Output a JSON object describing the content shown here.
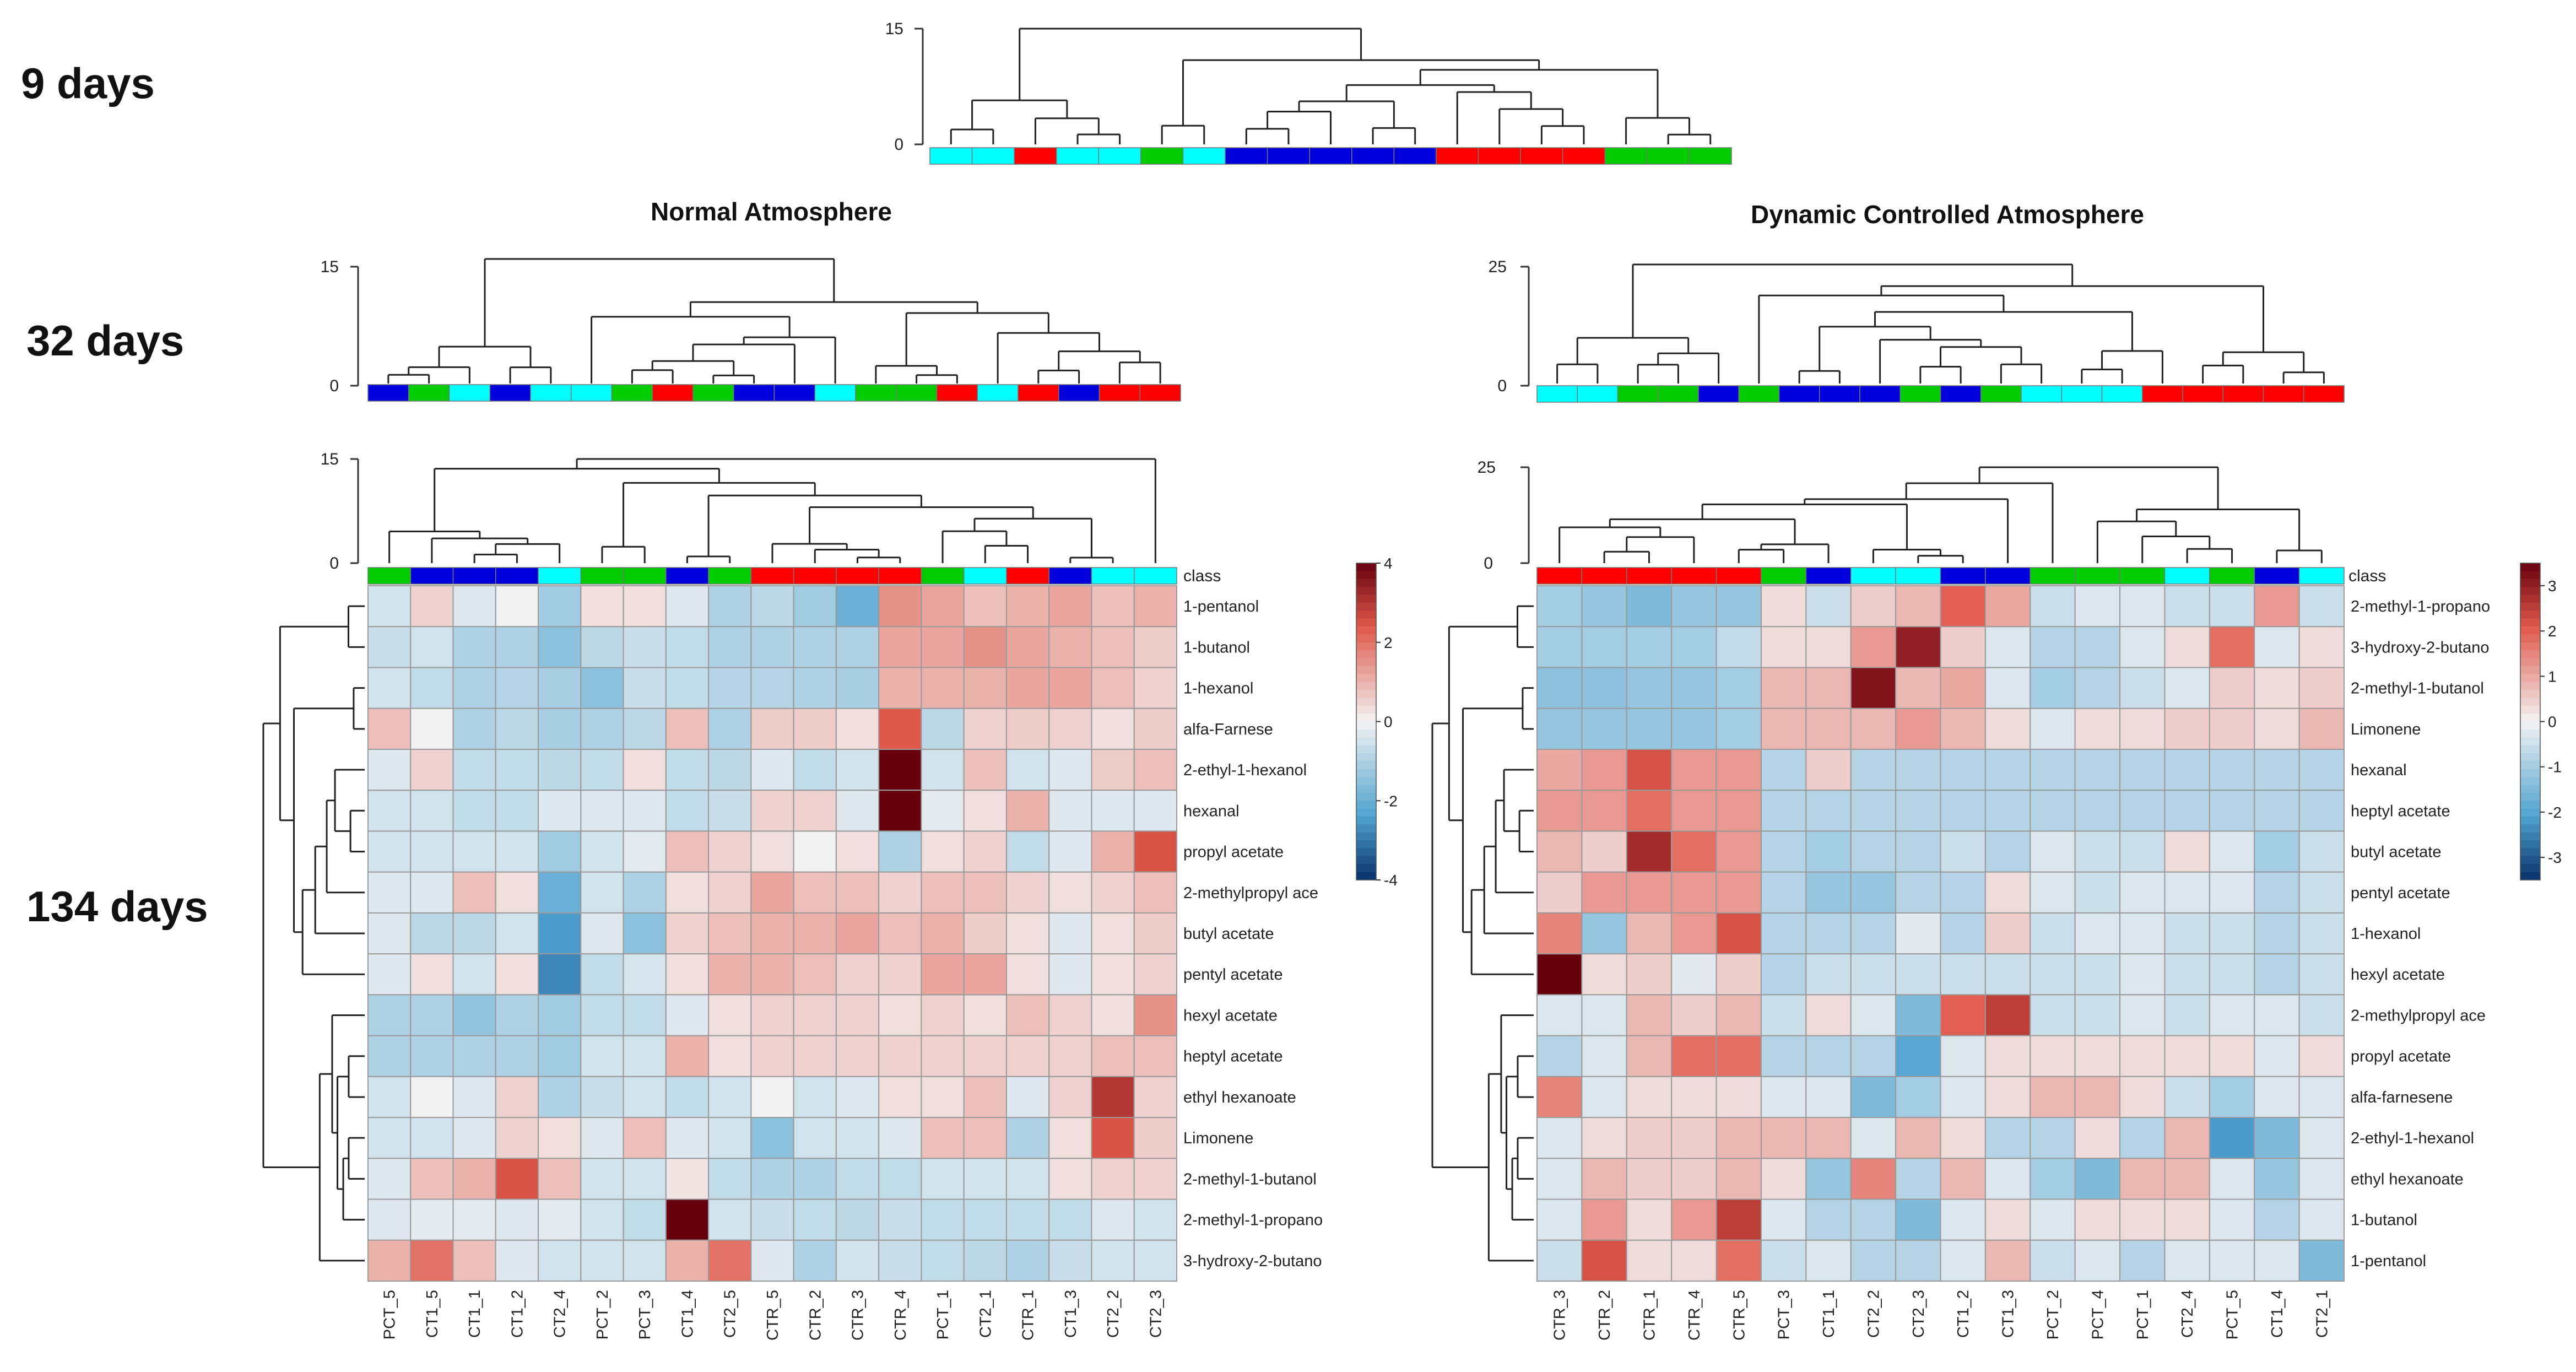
{
  "day_labels": [
    "9 days",
    "32 days",
    "134 days"
  ],
  "panel_titles": [
    "Normal Atmosphere",
    "Dynamic Controlled Atmosphere"
  ],
  "class_colors": {
    "CTR": "#ff0000",
    "CT1": "#00ffff",
    "CT2": "#00cc00",
    "PCT": "#0000dd"
  },
  "colorscale": {
    "low": "#08306b",
    "mid": "#f2f2f2",
    "high": "#67000d"
  },
  "chart_data": [
    {
      "type": "dendrogram",
      "panel": "9 days",
      "y_ticks": [
        "15",
        "0"
      ],
      "ylim": [
        0,
        15
      ],
      "leaf_classes": [
        "CT1",
        "CT1",
        "CTR",
        "CT1",
        "CT1",
        "CT2",
        "CT1",
        "PCT",
        "PCT",
        "PCT",
        "PCT",
        "PCT",
        "CTR",
        "CTR",
        "CTR",
        "CTR",
        "CT2",
        "CT2",
        "CT2"
      ]
    },
    {
      "type": "dendrogram",
      "panel": "32 days - Normal Atmosphere",
      "y_ticks": [
        "15",
        "0"
      ],
      "ylim": [
        0,
        15
      ],
      "leaf_classes": [
        "PCT",
        "CT2",
        "CT1",
        "PCT",
        "CT1",
        "CT1",
        "CT2",
        "CTR",
        "CT2",
        "PCT",
        "PCT",
        "CT1",
        "CT2",
        "CT2",
        "CTR",
        "CT1",
        "CTR",
        "PCT",
        "CTR",
        "CTR"
      ]
    },
    {
      "type": "dendrogram",
      "panel": "32 days - Dynamic Controlled Atmosphere",
      "y_ticks": [
        "25",
        "0"
      ],
      "ylim": [
        0,
        25
      ],
      "leaf_classes": [
        "CT1",
        "CT1",
        "CT2",
        "CT2",
        "PCT",
        "CT2",
        "PCT",
        "PCT",
        "PCT",
        "CT2",
        "PCT",
        "CT2",
        "CT1",
        "CT1",
        "CT1",
        "CTR",
        "CTR",
        "CTR",
        "CTR",
        "CTR"
      ]
    },
    {
      "type": "heatmap",
      "panel": "134 days - Normal Atmosphere",
      "col_dendro_ticks": [
        "15",
        "0"
      ],
      "class_label": "class",
      "colorbar_ticks": [
        "4",
        "2",
        "0",
        "-2",
        "-4"
      ],
      "zlim": [
        -4,
        4
      ],
      "columns": [
        "PCT_5",
        "CT1_5",
        "CT1_1",
        "CT1_2",
        "CT2_4",
        "PCT_2",
        "PCT_3",
        "CT1_4",
        "CT2_5",
        "CTR_5",
        "CTR_2",
        "CTR_3",
        "CTR_4",
        "PCT_1",
        "CT2_1",
        "CTR_1",
        "CT1_3",
        "CT2_2",
        "CT2_3"
      ],
      "column_classes": [
        "CT2",
        "PCT",
        "PCT",
        "PCT",
        "CT1",
        "CT2",
        "CT2",
        "PCT",
        "CT2",
        "CTR",
        "CTR",
        "CTR",
        "CTR",
        "CT2",
        "CT1",
        "CTR",
        "PCT",
        "CT1",
        "CT1"
      ],
      "rows": [
        "1-pentanol",
        "1-butanol",
        "1-hexanol",
        "alfa-Farnese",
        "2-ethyl-1-hexanol",
        "hexanal",
        "propyl acetate",
        "2-methylpropyl ace",
        "butyl acetate",
        "pentyl acetate",
        "hexyl acetate",
        "heptyl acetate",
        "ethyl hexanoate",
        "Limonene",
        "2-methyl-1-butanol",
        "2-methyl-1-propano",
        "3-hydroxy-2-butano"
      ],
      "values": [
        [
          -0.5,
          0.5,
          -0.3,
          0,
          -1.2,
          0.3,
          0.3,
          -0.3,
          -1.0,
          -0.8,
          -1.2,
          -2.0,
          1.5,
          1.2,
          0.8,
          1.0,
          1.2,
          0.8,
          1.0
        ],
        [
          -0.6,
          -0.5,
          -1.0,
          -1.0,
          -1.5,
          -0.8,
          -0.6,
          -0.7,
          -1.0,
          -1.0,
          -1.0,
          -1.0,
          1.2,
          1.2,
          1.5,
          1.2,
          1.0,
          0.8,
          0.6
        ],
        [
          -0.5,
          -0.7,
          -1.0,
          -0.9,
          -1.1,
          -1.5,
          -0.6,
          -0.7,
          -0.9,
          -0.9,
          -1.0,
          -1.1,
          1.0,
          1.0,
          1.0,
          1.2,
          1.2,
          0.8,
          0.5
        ],
        [
          0.8,
          0,
          -1.0,
          -0.8,
          -1.1,
          -1.0,
          -0.8,
          0.8,
          -1.0,
          0.6,
          0.6,
          0.3,
          2.4,
          -0.8,
          0.5,
          0.6,
          0.5,
          0.3,
          0.6
        ],
        [
          -0.3,
          0.5,
          -0.7,
          -0.7,
          -0.8,
          -0.7,
          0.3,
          -0.7,
          -0.8,
          -0.3,
          -0.7,
          -0.5,
          4.0,
          -0.5,
          0.8,
          -0.5,
          -0.3,
          0.6,
          0.8
        ],
        [
          -0.5,
          -0.5,
          -0.7,
          -0.7,
          -0.3,
          -0.3,
          -0.3,
          -0.7,
          -0.6,
          0.5,
          0.5,
          -0.3,
          4.0,
          -0.2,
          0.3,
          1.0,
          -0.3,
          -0.3,
          -0.3
        ],
        [
          -0.5,
          -0.5,
          -0.5,
          -0.5,
          -1.2,
          -0.5,
          -0.2,
          0.8,
          0.5,
          0.3,
          0,
          0.3,
          -1.0,
          0.3,
          0.5,
          -0.7,
          -0.3,
          1.0,
          2.5
        ],
        [
          -0.3,
          -0.3,
          0.8,
          0.3,
          -2.0,
          -0.5,
          -1.0,
          0.3,
          0.5,
          1.2,
          0.8,
          0.8,
          0.5,
          0.8,
          0.8,
          0.5,
          0.3,
          0.5,
          0.8
        ],
        [
          -0.3,
          -0.8,
          -0.8,
          -0.5,
          -2.5,
          -0.3,
          -1.5,
          0.5,
          0.8,
          1.0,
          1.0,
          1.2,
          0.8,
          1.0,
          0.6,
          0.3,
          -0.3,
          0.3,
          0.6
        ],
        [
          -0.3,
          0.3,
          -0.5,
          0.3,
          -2.8,
          -0.7,
          -0.4,
          0.3,
          1.0,
          1.0,
          0.8,
          0.5,
          0.5,
          1.2,
          1.2,
          0.3,
          -0.3,
          0.3,
          0.5
        ],
        [
          -1.0,
          -1.0,
          -1.4,
          -1.0,
          -1.2,
          -0.7,
          -0.7,
          -0.3,
          0.3,
          0.5,
          0.5,
          0.5,
          0.3,
          0.5,
          0.3,
          0.8,
          0.5,
          0.3,
          1.5
        ],
        [
          -1.0,
          -1.0,
          -1.0,
          -1.0,
          -1.2,
          -0.5,
          -0.5,
          1.0,
          0.3,
          0.5,
          0.5,
          0.5,
          0.5,
          0.5,
          0.5,
          0.5,
          0.5,
          0.8,
          0.8
        ],
        [
          -0.5,
          0,
          -0.3,
          0.5,
          -1.0,
          -0.6,
          -0.5,
          -0.7,
          -0.5,
          0,
          -0.5,
          -0.3,
          0.3,
          0.3,
          0.8,
          -0.3,
          0.5,
          3.0,
          0.5
        ],
        [
          -0.5,
          -0.5,
          -0.3,
          0.5,
          0.3,
          -0.3,
          0.8,
          -0.3,
          -0.5,
          -1.5,
          -0.5,
          -0.5,
          -0.3,
          0.8,
          0.8,
          -1.0,
          0.3,
          2.5,
          0.6
        ],
        [
          -0.3,
          0.8,
          1.0,
          2.5,
          0.8,
          -0.5,
          -0.5,
          0.2,
          -0.7,
          -1.0,
          -1.0,
          -0.7,
          -0.7,
          -0.5,
          -0.5,
          -0.5,
          0.3,
          0.5,
          0.5
        ],
        [
          -0.3,
          -0.2,
          -0.2,
          -0.3,
          -0.2,
          -0.5,
          -0.7,
          4.0,
          -0.5,
          -0.6,
          -0.7,
          -0.8,
          -0.6,
          -0.7,
          -0.7,
          -0.7,
          -0.7,
          -0.3,
          -0.5
        ],
        [
          1.0,
          2.0,
          0.8,
          -0.3,
          -0.5,
          -0.5,
          -0.5,
          1.0,
          2.0,
          -0.3,
          -1.0,
          -0.5,
          -0.6,
          -0.7,
          -0.8,
          -1.0,
          -0.6,
          -0.5,
          -0.5
        ]
      ]
    },
    {
      "type": "heatmap",
      "panel": "134 days - Dynamic Controlled Atmosphere",
      "col_dendro_ticks": [
        "25",
        "0"
      ],
      "class_label": "class",
      "colorbar_ticks": [
        "3",
        "2",
        "1",
        "0",
        "-1",
        "-2",
        "-3"
      ],
      "zlim": [
        -3.5,
        3.5
      ],
      "columns": [
        "CTR_3",
        "CTR_2",
        "CTR_1",
        "CTR_4",
        "CTR_5",
        "PCT_3",
        "CT1_1",
        "CT2_2",
        "CT2_3",
        "CT1_2",
        "CT1_3",
        "PCT_2",
        "PCT_4",
        "PCT_1",
        "CT2_4",
        "PCT_5",
        "CT1_4",
        "CT2_1"
      ],
      "column_classes": [
        "CTR",
        "CTR",
        "CTR",
        "CTR",
        "CTR",
        "CT2",
        "PCT",
        "CT1",
        "CT1",
        "PCT",
        "PCT",
        "CT2",
        "CT2",
        "CT2",
        "CT1",
        "CT2",
        "PCT",
        "CT1"
      ],
      "rows": [
        "2-methyl-1-propano",
        "3-hydroxy-2-butano",
        "2-methyl-1-butanol",
        "Limonene",
        "hexanal",
        "heptyl acetate",
        "butyl acetate",
        "pentyl acetate",
        "1-hexanol",
        "hexyl acetate",
        "2-methylpropyl ace",
        "propyl acetate",
        "alfa-farnesene",
        "2-ethyl-1-hexanol",
        "ethyl hexanoate",
        "1-butanol",
        "1-pentanol"
      ],
      "values": [
        [
          -1.0,
          -1.2,
          -1.5,
          -1.2,
          -1.2,
          0.3,
          -0.5,
          0.5,
          0.8,
          2.0,
          1.0,
          -0.5,
          -0.3,
          -0.3,
          -0.5,
          -0.5,
          1.2,
          -0.5
        ],
        [
          -1.0,
          -1.0,
          -1.0,
          -1.0,
          -0.6,
          0.3,
          0.3,
          1.2,
          3.0,
          0.5,
          -0.3,
          -0.8,
          -0.8,
          -0.3,
          0.3,
          1.8,
          -0.3,
          0.3
        ],
        [
          -1.3,
          -1.3,
          -1.2,
          -1.2,
          -1.0,
          0.8,
          0.8,
          3.2,
          0.8,
          1.0,
          -0.3,
          -1.0,
          -0.8,
          -0.5,
          -0.3,
          0.5,
          0.3,
          0.5
        ],
        [
          -1.2,
          -1.2,
          -1.2,
          -1.2,
          -1.0,
          0.8,
          0.8,
          0.8,
          1.2,
          0.8,
          0.3,
          -0.3,
          0.3,
          0.3,
          0.5,
          0.5,
          0.3,
          0.8
        ],
        [
          1.0,
          1.2,
          2.2,
          1.2,
          1.2,
          -0.8,
          0.5,
          -0.8,
          -0.8,
          -0.8,
          -0.8,
          -0.8,
          -0.8,
          -0.8,
          -0.8,
          -0.8,
          -0.8,
          -0.8
        ],
        [
          1.2,
          1.2,
          1.8,
          1.2,
          1.2,
          -0.8,
          -0.8,
          -0.8,
          -0.8,
          -0.8,
          -0.8,
          -0.8,
          -0.8,
          -0.8,
          -0.8,
          -0.8,
          -0.8,
          -0.8
        ],
        [
          0.8,
          0.5,
          2.8,
          1.8,
          1.2,
          -0.8,
          -1.0,
          -0.8,
          -0.8,
          -0.5,
          -0.8,
          -0.3,
          -0.5,
          -0.5,
          0.3,
          -0.3,
          -1.0,
          -0.5
        ],
        [
          0.5,
          1.2,
          1.2,
          1.2,
          1.2,
          -0.8,
          -1.2,
          -1.2,
          -0.8,
          -0.8,
          0.3,
          -0.3,
          -0.5,
          -0.3,
          -0.3,
          -0.3,
          -0.8,
          -0.5
        ],
        [
          1.5,
          -1.2,
          0.8,
          1.2,
          2.2,
          -0.8,
          -0.8,
          -0.8,
          -0.2,
          -0.8,
          0.5,
          -0.5,
          -0.3,
          -0.3,
          -0.5,
          -0.5,
          -0.8,
          -0.5
        ],
        [
          3.5,
          0.3,
          0.5,
          -0.2,
          0.5,
          -0.8,
          -0.5,
          -0.5,
          -0.5,
          -0.5,
          -0.5,
          -0.5,
          -0.5,
          -0.3,
          -0.5,
          -0.5,
          -0.8,
          -0.5
        ],
        [
          -0.3,
          -0.3,
          0.8,
          0.5,
          0.8,
          -0.5,
          0.3,
          -0.3,
          -1.5,
          2.0,
          2.5,
          -0.5,
          -0.5,
          -0.3,
          -0.5,
          -0.3,
          -0.3,
          -0.5
        ],
        [
          -0.8,
          -0.3,
          0.8,
          1.8,
          1.8,
          -0.8,
          -0.8,
          -0.8,
          -2.0,
          -0.3,
          0.3,
          0.3,
          0.3,
          0.3,
          0.3,
          0.3,
          -0.3,
          0.3
        ],
        [
          1.5,
          -0.3,
          0.3,
          0.3,
          0.3,
          -0.3,
          -0.3,
          -1.5,
          -1.0,
          -0.3,
          0.3,
          0.8,
          0.8,
          0.3,
          -0.5,
          -1.0,
          -0.3,
          -0.3
        ],
        [
          -0.3,
          0.3,
          0.5,
          0.5,
          0.8,
          0.8,
          0.8,
          -0.3,
          0.8,
          0.3,
          -0.8,
          -0.8,
          0.3,
          -0.8,
          0.8,
          -2.2,
          -1.5,
          -0.3
        ],
        [
          -0.3,
          0.8,
          0.5,
          0.5,
          0.8,
          0.3,
          -1.2,
          1.5,
          -0.8,
          0.8,
          -0.3,
          -1.0,
          -1.5,
          0.8,
          0.8,
          -0.3,
          -1.2,
          -0.3
        ],
        [
          -0.3,
          1.2,
          0.3,
          1.2,
          2.5,
          -0.3,
          -0.8,
          -0.8,
          -1.5,
          -0.3,
          0.3,
          -0.3,
          0.3,
          0.3,
          0.3,
          -0.3,
          -0.8,
          -0.3
        ],
        [
          -0.5,
          2.2,
          0.3,
          0.3,
          1.8,
          -0.5,
          -0.3,
          -0.8,
          -0.8,
          -0.3,
          0.8,
          -0.5,
          -0.3,
          -0.8,
          -0.3,
          -0.3,
          -0.3,
          -1.5
        ]
      ]
    }
  ]
}
